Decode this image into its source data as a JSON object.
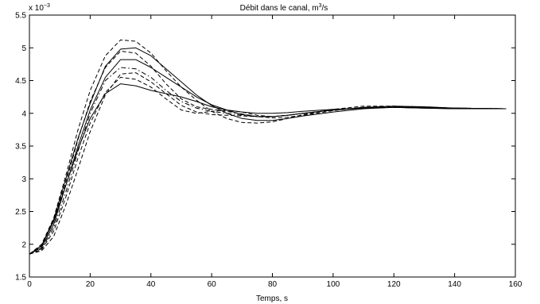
{
  "chart_data": {
    "type": "line",
    "title_main": "Débit dans le canal, m",
    "title_sup": "3",
    "title_tail": "/s",
    "xlabel": "Temps, s",
    "ylabel": "",
    "y_multiplier_base": "x 10",
    "y_multiplier_exp": "−3",
    "xlim": [
      0,
      160
    ],
    "ylim": [
      1.5,
      5.5
    ],
    "xticks": [
      0,
      20,
      40,
      60,
      80,
      100,
      120,
      140,
      160
    ],
    "yticks": [
      1.5,
      2,
      2.5,
      3,
      3.5,
      4,
      4.5,
      5,
      5.5
    ],
    "xtick_labels": [
      "0",
      "20",
      "40",
      "60",
      "80",
      "100",
      "120",
      "140",
      "160"
    ],
    "ytick_labels": [
      "1.5",
      "2",
      "2.5",
      "3",
      "3.5",
      "4",
      "4.5",
      "5",
      "5.5"
    ],
    "grid": false,
    "legend": "none",
    "series": [
      {
        "style": "solid",
        "x": [
          0,
          4,
          8,
          12,
          16,
          20,
          25,
          30,
          35,
          40,
          45,
          50,
          55,
          60,
          65,
          70,
          75,
          80,
          85,
          90,
          100,
          110,
          120,
          130,
          140,
          157
        ],
        "y": [
          1.85,
          1.95,
          2.3,
          2.9,
          3.5,
          4.05,
          4.55,
          4.82,
          4.82,
          4.7,
          4.55,
          4.4,
          4.25,
          4.13,
          4.05,
          3.98,
          3.95,
          3.95,
          3.97,
          4.0,
          4.05,
          4.08,
          4.09,
          4.08,
          4.07,
          4.07
        ]
      },
      {
        "style": "solid",
        "x": [
          0,
          4,
          8,
          12,
          16,
          20,
          25,
          30,
          35,
          40,
          45,
          50,
          55,
          60,
          65,
          70,
          75,
          80,
          85,
          90,
          100,
          110,
          120,
          130,
          140,
          157
        ],
        "y": [
          1.85,
          1.98,
          2.38,
          3.0,
          3.62,
          4.15,
          4.72,
          4.98,
          5.0,
          4.88,
          4.68,
          4.48,
          4.28,
          4.12,
          4.0,
          3.92,
          3.89,
          3.89,
          3.92,
          3.96,
          4.02,
          4.07,
          4.09,
          4.09,
          4.08,
          4.07
        ]
      },
      {
        "style": "solid",
        "x": [
          0,
          4,
          8,
          12,
          16,
          20,
          25,
          30,
          35,
          40,
          45,
          50,
          55,
          60,
          65,
          70,
          75,
          80,
          85,
          90,
          100,
          110,
          120,
          130,
          140,
          157
        ],
        "y": [
          1.85,
          1.98,
          2.35,
          2.9,
          3.45,
          3.92,
          4.3,
          4.45,
          4.42,
          4.35,
          4.3,
          4.25,
          4.18,
          4.1,
          4.05,
          4.02,
          4.0,
          4.0,
          4.01,
          4.03,
          4.06,
          4.08,
          4.09,
          4.08,
          4.07,
          4.07
        ]
      },
      {
        "style": "dashed",
        "x": [
          0,
          4,
          8,
          12,
          16,
          20,
          25,
          30,
          35,
          40,
          45,
          50,
          55,
          60,
          65,
          70,
          75,
          80,
          85,
          90,
          100,
          110,
          120,
          130,
          140,
          157
        ],
        "y": [
          1.85,
          2.0,
          2.4,
          3.05,
          3.75,
          4.35,
          4.88,
          5.12,
          5.1,
          4.92,
          4.65,
          4.4,
          4.2,
          4.03,
          3.92,
          3.86,
          3.85,
          3.87,
          3.92,
          3.98,
          4.06,
          4.11,
          4.11,
          4.09,
          4.08,
          4.07
        ]
      },
      {
        "style": "dashed",
        "x": [
          0,
          4,
          8,
          12,
          16,
          20,
          25,
          30,
          35,
          40,
          45,
          50,
          55,
          60,
          65,
          70,
          75,
          80,
          85,
          90,
          100,
          110,
          120,
          130,
          140,
          157
        ],
        "y": [
          1.85,
          1.92,
          2.2,
          2.72,
          3.32,
          3.85,
          4.32,
          4.55,
          4.52,
          4.4,
          4.22,
          4.05,
          4.0,
          4.03,
          4.05,
          4.02,
          3.97,
          3.95,
          3.97,
          4.0,
          4.05,
          4.09,
          4.1,
          4.09,
          4.08,
          4.07
        ]
      },
      {
        "style": "dashed",
        "x": [
          0,
          4,
          8,
          12,
          16,
          20,
          25,
          30,
          35,
          40,
          45,
          50,
          55,
          60,
          65,
          70,
          75,
          80,
          85,
          90,
          100,
          110,
          120,
          130,
          140,
          157
        ],
        "y": [
          1.85,
          1.9,
          2.12,
          2.6,
          3.15,
          3.72,
          4.28,
          4.6,
          4.62,
          4.48,
          4.3,
          4.12,
          4.02,
          3.98,
          3.97,
          3.96,
          3.95,
          3.95,
          3.97,
          4.0,
          4.05,
          4.09,
          4.11,
          4.1,
          4.08,
          4.07
        ]
      },
      {
        "style": "dashed",
        "x": [
          0,
          4,
          8,
          12,
          16,
          20,
          25,
          30,
          35,
          40,
          45,
          50,
          55,
          60,
          65,
          70,
          75,
          80,
          85,
          90,
          100,
          110,
          120,
          130,
          140,
          157
        ],
        "y": [
          1.85,
          1.97,
          2.35,
          2.95,
          3.6,
          4.18,
          4.7,
          4.95,
          4.92,
          4.72,
          4.45,
          4.22,
          4.1,
          4.06,
          4.03,
          3.99,
          3.95,
          3.93,
          3.94,
          3.97,
          4.04,
          4.09,
          4.11,
          4.1,
          4.08,
          4.07
        ]
      },
      {
        "style": "dashdot",
        "x": [
          0,
          4,
          8,
          12,
          16,
          20,
          25,
          30,
          35,
          40,
          45,
          50,
          55,
          60,
          65,
          70,
          75,
          80,
          85,
          90,
          100,
          110,
          120,
          130,
          140,
          157
        ],
        "y": [
          1.85,
          1.93,
          2.25,
          2.8,
          3.42,
          4.0,
          4.5,
          4.7,
          4.68,
          4.55,
          4.35,
          4.18,
          4.08,
          4.03,
          4.0,
          3.97,
          3.95,
          3.95,
          3.97,
          4.0,
          4.05,
          4.09,
          4.1,
          4.09,
          4.08,
          4.07
        ]
      }
    ]
  }
}
